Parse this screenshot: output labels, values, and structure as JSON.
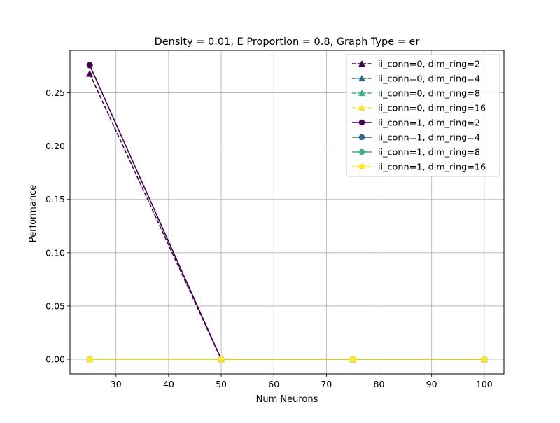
{
  "chart_data": {
    "type": "line",
    "title": "Density = 0.01, E Proportion = 0.8, Graph Type = er",
    "xlabel": "Num Neurons",
    "ylabel": "Performance",
    "x": [
      25,
      50,
      75,
      100
    ],
    "xlim": [
      21.25,
      103.75
    ],
    "ylim": [
      -0.0138,
      0.2898
    ],
    "xticks": [
      30,
      40,
      50,
      60,
      70,
      80,
      90,
      100
    ],
    "yticks": [
      "0.00",
      "0.05",
      "0.10",
      "0.15",
      "0.20",
      "0.25"
    ],
    "grid": true,
    "legend_position": "top-right",
    "series": [
      {
        "name": "ii_conn=0, dim_ring=2",
        "color": "#440154",
        "linestyle": "dashed",
        "marker": "triangle",
        "values": [
          0.268,
          0.0,
          0.0,
          0.0
        ]
      },
      {
        "name": "ii_conn=0, dim_ring=4",
        "color": "#31688e",
        "linestyle": "dashed",
        "marker": "triangle",
        "values": [
          0.0,
          0.0,
          0.0,
          0.0
        ]
      },
      {
        "name": "ii_conn=0, dim_ring=8",
        "color": "#35b779",
        "linestyle": "dashed",
        "marker": "triangle",
        "values": [
          0.0,
          0.0,
          0.0,
          0.0
        ]
      },
      {
        "name": "ii_conn=0, dim_ring=16",
        "color": "#fde725",
        "linestyle": "dashed",
        "marker": "triangle",
        "values": [
          0.0,
          0.0,
          0.0,
          0.0
        ]
      },
      {
        "name": "ii_conn=1, dim_ring=2",
        "color": "#440154",
        "linestyle": "solid",
        "marker": "circle",
        "values": [
          0.276,
          0.0,
          0.0,
          0.0
        ]
      },
      {
        "name": "ii_conn=1, dim_ring=4",
        "color": "#31688e",
        "linestyle": "solid",
        "marker": "circle",
        "values": [
          0.0,
          0.0,
          0.0,
          0.0
        ]
      },
      {
        "name": "ii_conn=1, dim_ring=8",
        "color": "#35b779",
        "linestyle": "solid",
        "marker": "circle",
        "values": [
          0.0,
          0.0,
          0.0,
          0.0
        ]
      },
      {
        "name": "ii_conn=1, dim_ring=16",
        "color": "#fde725",
        "linestyle": "solid",
        "marker": "circle",
        "values": [
          0.0,
          0.0,
          0.0,
          0.0
        ]
      }
    ]
  }
}
